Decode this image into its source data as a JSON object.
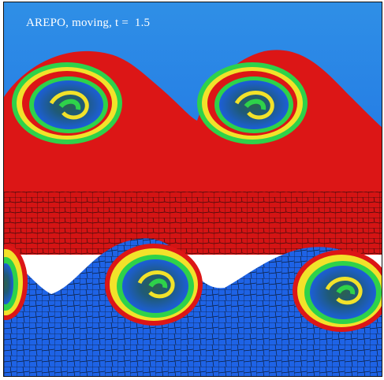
{
  "caption": "AREPO, moving, t =  1.5",
  "colors": {
    "background_blue": "#1f63e8",
    "top_blue": "#2b86e6",
    "fluid_red": "#dc1616",
    "edge_yellow": "#f2e22a",
    "edge_green": "#2ed24a",
    "vortex_dark": "#2a5468",
    "mesh_line": "#1a1a1a"
  }
}
